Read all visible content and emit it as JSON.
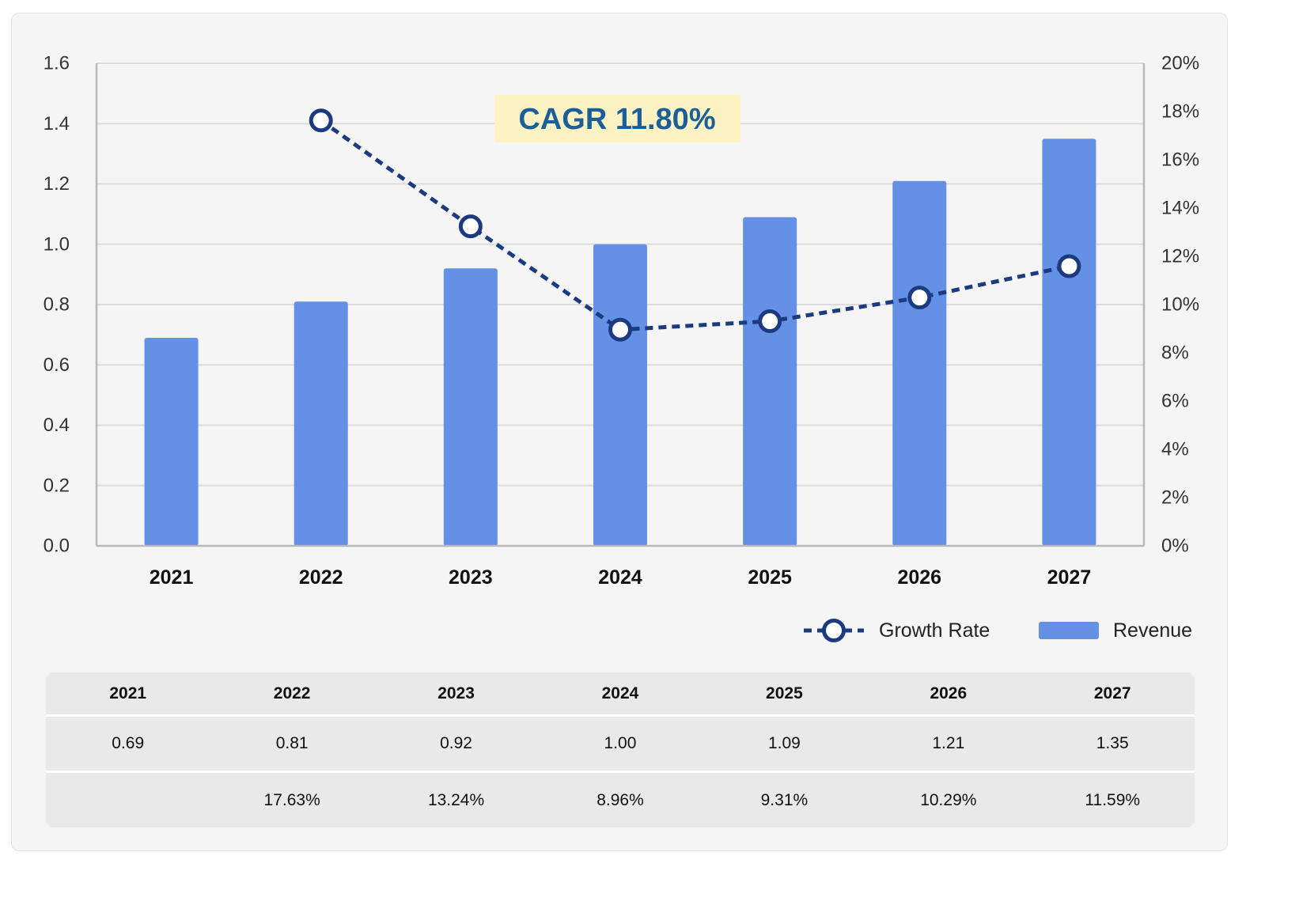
{
  "chart_data": {
    "type": "bar",
    "categories": [
      "2021",
      "2022",
      "2023",
      "2024",
      "2025",
      "2026",
      "2027"
    ],
    "series": [
      {
        "name": "Revenue",
        "type": "bar",
        "axis": "left",
        "color": "#6490e6",
        "values": [
          0.69,
          0.81,
          0.92,
          1.0,
          1.09,
          1.21,
          1.35
        ]
      },
      {
        "name": "Growth Rate",
        "type": "line",
        "axis": "right",
        "style": "dashed",
        "color": "#1b3a80",
        "values": [
          null,
          17.63,
          13.24,
          8.96,
          9.31,
          10.29,
          11.59
        ]
      }
    ],
    "y_left": {
      "min": 0,
      "max": 1.6,
      "step": 0.2,
      "ticks": [
        "0.0",
        "0.2",
        "0.4",
        "0.6",
        "0.8",
        "1.0",
        "1.2",
        "1.4",
        "1.6"
      ]
    },
    "y_right": {
      "min": 0,
      "max": 20,
      "step": 2,
      "ticks": [
        "0%",
        "2%",
        "4%",
        "6%",
        "8%",
        "10%",
        "12%",
        "14%",
        "16%",
        "18%",
        "20%"
      ]
    },
    "grid": true,
    "legend": {
      "position": "bottom-right",
      "items": [
        "Growth Rate",
        "Revenue"
      ]
    },
    "annotation": {
      "text": "CAGR 11.80%",
      "position": "top-center",
      "background": "#fdf3c2"
    }
  },
  "table": {
    "header": [
      "2021",
      "2022",
      "2023",
      "2024",
      "2025",
      "2026",
      "2027"
    ],
    "revenue": [
      "0.69",
      "0.81",
      "0.92",
      "1.00",
      "1.09",
      "1.21",
      "1.35"
    ],
    "growth": [
      "",
      "17.63%",
      "13.24%",
      "8.96%",
      "9.31%",
      "10.29%",
      "11.59%"
    ]
  },
  "colors": {
    "bar": "#6490e6",
    "line": "#1b3a80",
    "cagr_text": "#1a5f9a",
    "cagr_bg": "#fdf3c2",
    "grid": "#dcdcdc",
    "axis": "#b8b8b8"
  }
}
